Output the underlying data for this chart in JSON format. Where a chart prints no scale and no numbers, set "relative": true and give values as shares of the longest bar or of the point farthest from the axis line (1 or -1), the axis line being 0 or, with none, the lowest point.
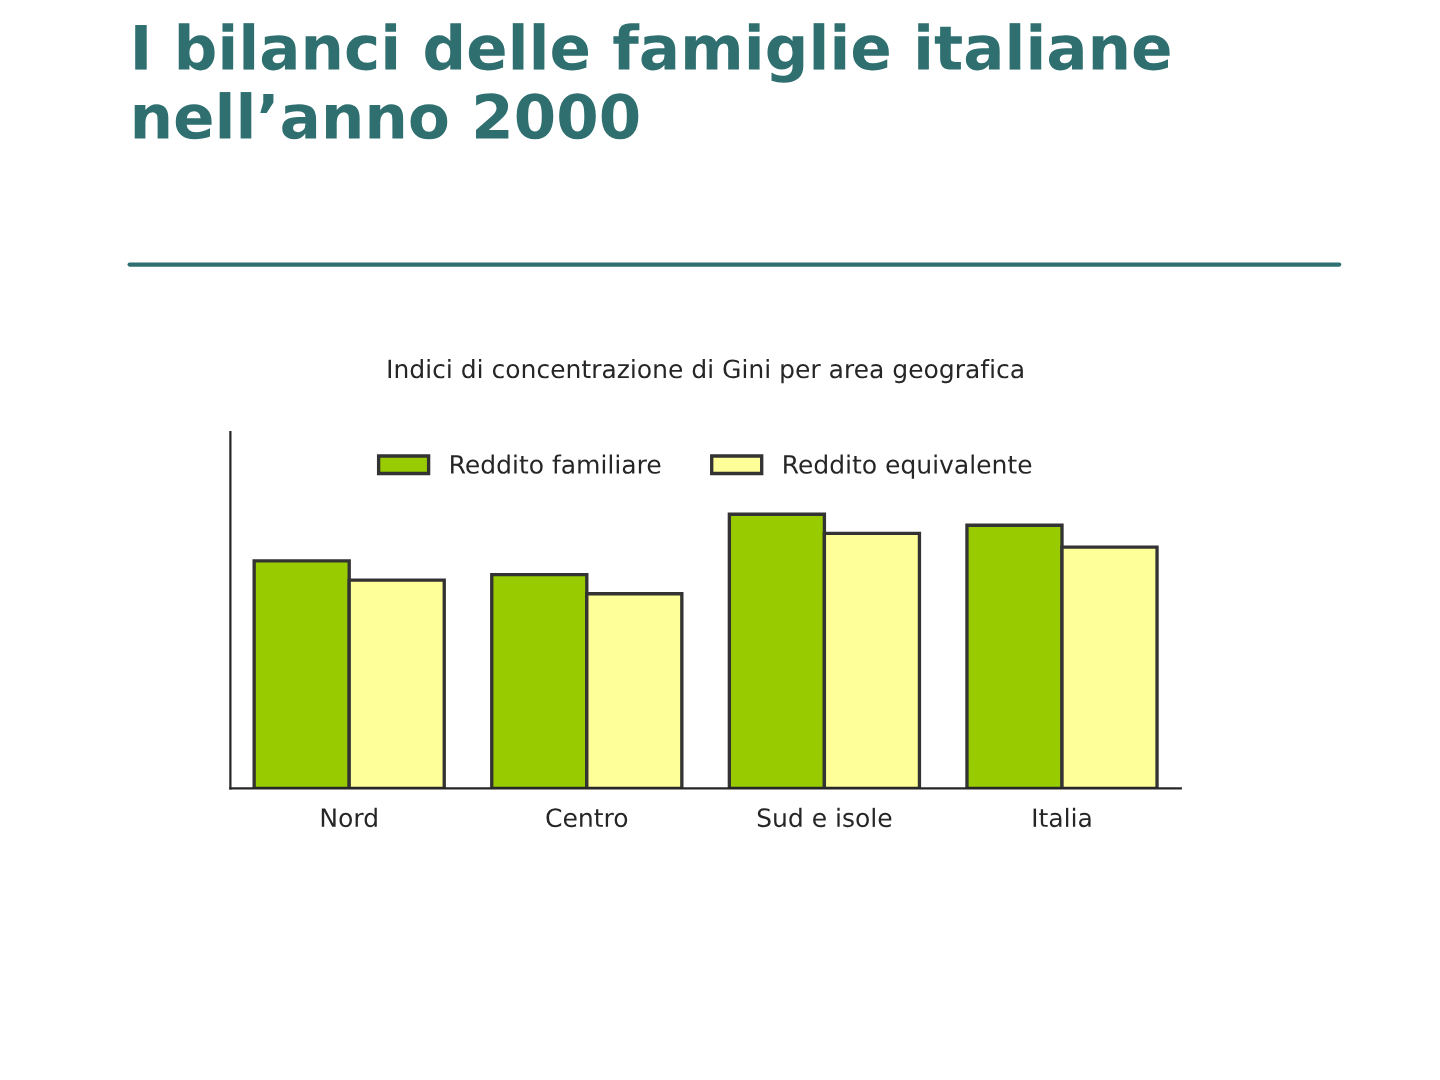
{
  "chart_data": {
    "type": "bar",
    "title": "I bilanci delle famiglie italiane nell’anno 2000",
    "subtitle": "Indici di concentrazione di Gini per area geografica",
    "categories": [
      "Nord",
      "Centro",
      "Sud e isole",
      "Italia"
    ],
    "relative": true,
    "series": [
      {
        "name": "Reddito familiare",
        "color": "#99cc00",
        "values": [
          0.83,
          0.78,
          1.0,
          0.96
        ]
      },
      {
        "name": "Reddito equivalente",
        "color": "#ffff99",
        "values": [
          0.76,
          0.71,
          0.93,
          0.88
        ]
      }
    ],
    "legend": "top"
  }
}
